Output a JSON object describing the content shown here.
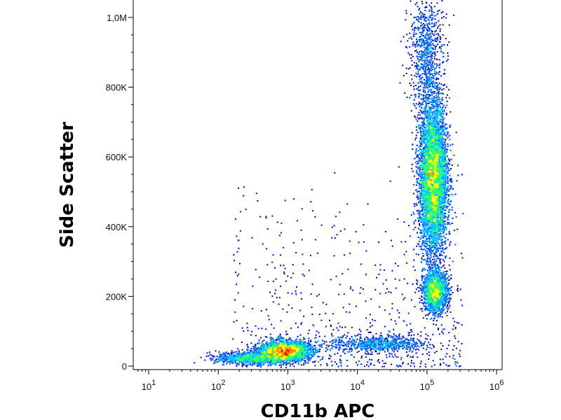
{
  "chart_data": {
    "type": "scatter",
    "subtype": "flow-cytometry density dot plot",
    "xlabel": "CD11b APC",
    "ylabel": "Side Scatter",
    "x_scale": "log",
    "xlim": [
      6,
      1200000
    ],
    "ylim": [
      -10000,
      1050000
    ],
    "x_ticks": [
      {
        "value": 10,
        "base": "10",
        "exp": "1"
      },
      {
        "value": 100,
        "base": "10",
        "exp": "2"
      },
      {
        "value": 1000,
        "base": "10",
        "exp": "3"
      },
      {
        "value": 10000,
        "base": "10",
        "exp": "4"
      },
      {
        "value": 100000,
        "base": "10",
        "exp": "5"
      },
      {
        "value": 1000000,
        "base": "10",
        "exp": "6"
      }
    ],
    "y_ticks": [
      {
        "value": 0,
        "label": "0"
      },
      {
        "value": 200000,
        "label": "200K"
      },
      {
        "value": 400000,
        "label": "400K"
      },
      {
        "value": 600000,
        "label": "600K"
      },
      {
        "value": 800000,
        "label": "800K"
      },
      {
        "value": 1000000,
        "label": "1,0M"
      }
    ],
    "grid": false,
    "legend": "none",
    "density_colormap": [
      "#0000cc",
      "#0066ff",
      "#00c8ff",
      "#33ff66",
      "#ffff00",
      "#ff8800",
      "#ff0000"
    ],
    "populations": [
      {
        "center_x": 900,
        "center_y": 45000,
        "spread_log_x": 0.18,
        "spread_y": 14000,
        "relative_count": 0.2,
        "peak_color": "red"
      },
      {
        "center_x": 20000,
        "center_y": 65000,
        "spread_log_x": 0.35,
        "spread_y": 12000,
        "relative_count": 0.05,
        "peak_color": "cyan"
      },
      {
        "center_x": 120000,
        "center_y": 540000,
        "spread_log_x": 0.1,
        "spread_y": 110000,
        "relative_count": 0.5,
        "peak_color": "yellow-green"
      },
      {
        "center_x": 130000,
        "center_y": 215000,
        "spread_log_x": 0.09,
        "spread_y": 28000,
        "relative_count": 0.12,
        "peak_color": "cyan-green"
      },
      {
        "center_x": 95000,
        "center_y": 900000,
        "spread_log_x": 0.12,
        "spread_y": 90000,
        "relative_count": 0.06,
        "peak_color": "blue"
      },
      {
        "center_x": 300,
        "center_y": 25000,
        "spread_log_x": 0.25,
        "spread_y": 9000,
        "relative_count": 0.07,
        "peak_color": "blue"
      }
    ]
  }
}
